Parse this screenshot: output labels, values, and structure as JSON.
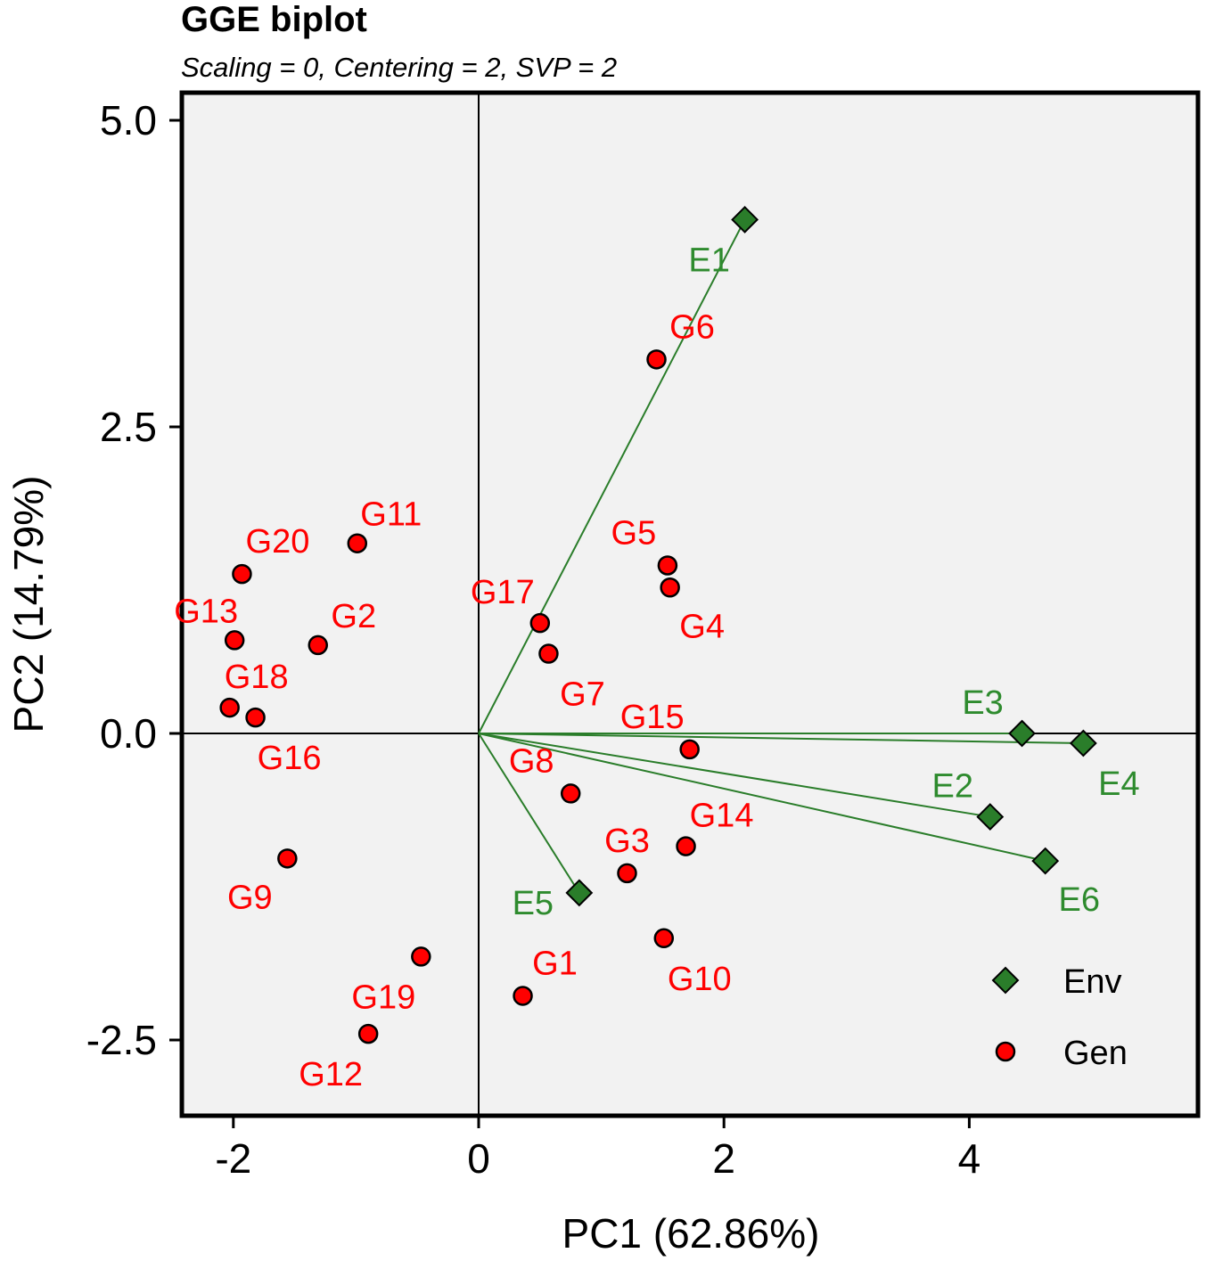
{
  "chart_data": {
    "type": "scatter",
    "title": "GGE biplot",
    "subtitle": "Scaling = 0, Centering = 2, SVP = 2",
    "xlabel": "PC1 (62.86%)",
    "ylabel": "PC2 (14.79%)",
    "xlim": [
      -2.4,
      5.8
    ],
    "ylim": [
      -3.1,
      5.15
    ],
    "xticks": [
      -2,
      0,
      2,
      4
    ],
    "xtick_labels": [
      "-2",
      "0",
      "2",
      "4"
    ],
    "yticks": [
      -2.5,
      0.0,
      2.5,
      5.0
    ],
    "ytick_labels": [
      "-2.5",
      "0.0",
      "2.5",
      "5.0"
    ],
    "grid": false,
    "colors": {
      "env": "#2a7d2a",
      "env_label": "#2e8b2e",
      "gen": "#ff0000",
      "panel": "#f2f2f2"
    },
    "series": [
      {
        "name": "Env",
        "marker": "diamond",
        "vectors_from_origin": true,
        "points": [
          {
            "label": "E1",
            "x": 2.17,
            "y": 4.19
          },
          {
            "label": "E2",
            "x": 4.17,
            "y": -0.68
          },
          {
            "label": "E3",
            "x": 4.43,
            "y": 0.0
          },
          {
            "label": "E4",
            "x": 4.93,
            "y": -0.08
          },
          {
            "label": "E5",
            "x": 0.82,
            "y": -1.3
          },
          {
            "label": "E6",
            "x": 4.62,
            "y": -1.04
          }
        ]
      },
      {
        "name": "Gen",
        "marker": "circle",
        "points": [
          {
            "label": "G1",
            "x": 0.36,
            "y": -2.14
          },
          {
            "label": "G2",
            "x": -1.31,
            "y": 0.72
          },
          {
            "label": "G3",
            "x": 1.21,
            "y": -1.14
          },
          {
            "label": "G4",
            "x": 1.56,
            "y": 1.19
          },
          {
            "label": "G5",
            "x": 1.54,
            "y": 1.37
          },
          {
            "label": "G6",
            "x": 1.45,
            "y": 3.05
          },
          {
            "label": "G7",
            "x": 0.57,
            "y": 0.65
          },
          {
            "label": "G8",
            "x": 0.75,
            "y": -0.49
          },
          {
            "label": "G9",
            "x": -1.56,
            "y": -1.02
          },
          {
            "label": "G10",
            "x": 1.51,
            "y": -1.67
          },
          {
            "label": "G11",
            "x": -0.99,
            "y": 1.55
          },
          {
            "label": "G12",
            "x": -0.9,
            "y": -2.45
          },
          {
            "label": "G13",
            "x": -1.99,
            "y": 0.76
          },
          {
            "label": "G14",
            "x": 1.69,
            "y": -0.92
          },
          {
            "label": "G15",
            "x": 1.72,
            "y": -0.13
          },
          {
            "label": "G16",
            "x": -1.82,
            "y": 0.13
          },
          {
            "label": "G17",
            "x": 0.5,
            "y": 0.9
          },
          {
            "label": "G18",
            "x": -2.03,
            "y": 0.21
          },
          {
            "label": "G19",
            "x": -0.47,
            "y": -1.82
          },
          {
            "label": "G20",
            "x": -1.93,
            "y": 1.3
          }
        ]
      }
    ],
    "legend": {
      "position": "bottom-right",
      "entries": [
        "Env",
        "Gen"
      ]
    }
  }
}
